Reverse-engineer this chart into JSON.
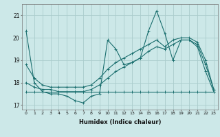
{
  "xlabel": "Humidex (Indice chaleur)",
  "background_color": "#cce8e8",
  "grid_color": "#aacccc",
  "line_color": "#1a6e6e",
  "x_values": [
    0,
    1,
    2,
    3,
    4,
    5,
    6,
    7,
    8,
    9,
    10,
    11,
    12,
    13,
    14,
    15,
    16,
    17,
    18,
    19,
    20,
    21,
    22,
    23
  ],
  "line1": [
    20.3,
    18.0,
    17.6,
    17.5,
    17.5,
    17.4,
    17.2,
    17.1,
    17.4,
    17.5,
    19.9,
    19.5,
    18.8,
    18.9,
    19.1,
    20.3,
    21.2,
    20.2,
    19.0,
    19.9,
    19.9,
    19.6,
    18.5,
    17.6
  ],
  "line2": [
    18.0,
    17.8,
    17.7,
    17.7,
    17.6,
    17.6,
    17.6,
    17.6,
    17.7,
    17.9,
    18.2,
    18.5,
    18.7,
    18.9,
    19.1,
    19.4,
    19.6,
    19.5,
    19.7,
    19.9,
    19.9,
    19.7,
    18.8,
    17.7
  ],
  "line3": [
    17.6,
    17.6,
    17.6,
    17.6,
    17.6,
    17.6,
    17.6,
    17.6,
    17.6,
    17.6,
    17.6,
    17.6,
    17.6,
    17.6,
    17.6,
    17.6,
    17.6,
    17.6,
    17.6,
    17.6,
    17.6,
    17.6,
    17.6,
    17.6
  ],
  "line4": [
    18.8,
    18.2,
    17.9,
    17.8,
    17.8,
    17.8,
    17.8,
    17.8,
    17.9,
    18.2,
    18.6,
    18.9,
    19.1,
    19.3,
    19.5,
    19.7,
    19.9,
    19.6,
    19.9,
    20.0,
    20.0,
    19.8,
    19.0,
    17.7
  ],
  "ylim": [
    16.8,
    21.5
  ],
  "yticks": [
    17,
    18,
    19,
    20,
    21
  ],
  "xticks": [
    0,
    1,
    2,
    3,
    4,
    5,
    6,
    7,
    8,
    9,
    10,
    11,
    12,
    13,
    14,
    15,
    16,
    17,
    18,
    19,
    20,
    21,
    22,
    23
  ]
}
